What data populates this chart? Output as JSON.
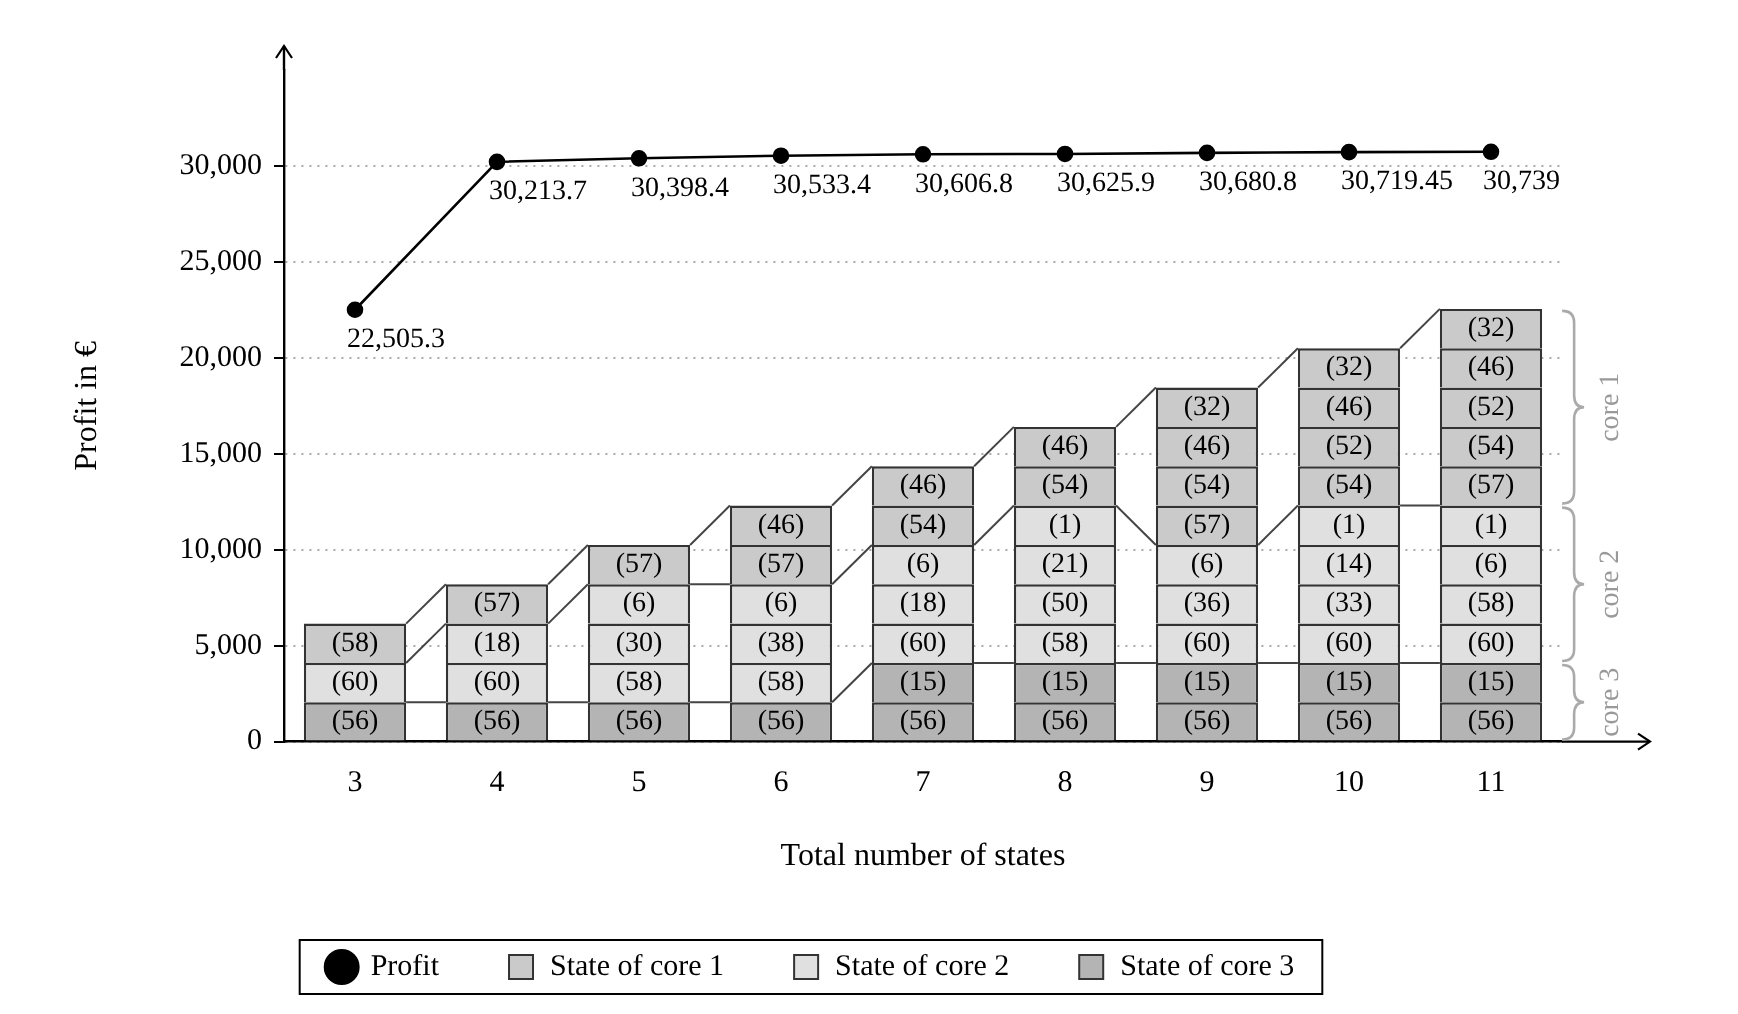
{
  "chart_data": {
    "type": "bar",
    "stacked": true,
    "xlabel": "Total number of states",
    "ylabel": "Profit in €",
    "categories": [
      "3",
      "4",
      "5",
      "6",
      "7",
      "8",
      "9",
      "10",
      "11"
    ],
    "ylim": [
      0,
      35000
    ],
    "yticks": [
      0,
      {
        "value": 5000,
        "label": "5,000"
      },
      {
        "value": 10000,
        "label": "10,000"
      },
      {
        "value": 15000,
        "label": "15,000"
      },
      {
        "value": 20000,
        "label": "20,000"
      },
      {
        "value": 25000,
        "label": "25,000"
      },
      {
        "value": 30000,
        "label": "30,000"
      }
    ],
    "grid": "y",
    "legend": "bottom",
    "marker": "circle",
    "annotations": [
      "core 1",
      "core 2",
      "core 3",
      {
        "text": "(56)",
        "x": "3",
        "y": 2050
      },
      {
        "text": "(60)",
        "x": "3",
        "y": 4100
      },
      {
        "text": "(58)",
        "x": "3",
        "y": 6150
      },
      {
        "text": "(56)",
        "x": "4",
        "y": 2050
      },
      {
        "text": "(60)",
        "x": "4",
        "y": 4100
      },
      {
        "text": "(18)",
        "x": "4",
        "y": 6150
      },
      {
        "text": "(57)",
        "x": "4",
        "y": 8200
      },
      {
        "text": "(56)",
        "x": "5",
        "y": 2050
      },
      {
        "text": "(58)",
        "x": "5",
        "y": 4100
      },
      {
        "text": "(30)",
        "x": "5",
        "y": 6150
      },
      {
        "text": "(6)",
        "x": "5",
        "y": 8200
      },
      {
        "text": "(57)",
        "x": "5",
        "y": 10250
      },
      {
        "text": "(56)",
        "x": "6",
        "y": 2050
      },
      {
        "text": "(58)",
        "x": "6",
        "y": 4100
      },
      {
        "text": "(38)",
        "x": "6",
        "y": 6150
      },
      {
        "text": "(6)",
        "x": "6",
        "y": 8200
      },
      {
        "text": "(57)",
        "x": "6",
        "y": 10250
      },
      {
        "text": "(46)",
        "x": "6",
        "y": 12300
      },
      {
        "text": "(56)",
        "x": "7",
        "y": 2050
      },
      {
        "text": "(15)",
        "x": "7",
        "y": 4100
      },
      {
        "text": "(60)",
        "x": "7",
        "y": 6150
      },
      {
        "text": "(18)",
        "x": "7",
        "y": 8200
      },
      {
        "text": "(6)",
        "x": "7",
        "y": 10250
      },
      {
        "text": "(54)",
        "x": "7",
        "y": 12300
      },
      {
        "text": "(46)",
        "x": "7",
        "y": 14350
      },
      {
        "text": "(56)",
        "x": "8",
        "y": 2050
      },
      {
        "text": "(15)",
        "x": "8",
        "y": 4100
      },
      {
        "text": "(58)",
        "x": "8",
        "y": 6150
      },
      {
        "text": "(50)",
        "x": "8",
        "y": 8200
      },
      {
        "text": "(21)",
        "x": "8",
        "y": 10250
      },
      {
        "text": "(1)",
        "x": "8",
        "y": 12300
      },
      {
        "text": "(54)",
        "x": "8",
        "y": 14350
      },
      {
        "text": "(46)",
        "x": "8",
        "y": 16400
      },
      {
        "text": "(56)",
        "x": "9",
        "y": 2050
      },
      {
        "text": "(15)",
        "x": "9",
        "y": 4100
      },
      {
        "text": "(60)",
        "x": "9",
        "y": 6150
      },
      {
        "text": "(36)",
        "x": "9",
        "y": 8200
      },
      {
        "text": "(6)",
        "x": "9",
        "y": 10250
      },
      {
        "text": "(57)",
        "x": "9",
        "y": 12300
      },
      {
        "text": "(54)",
        "x": "9",
        "y": 14350
      },
      {
        "text": "(46)",
        "x": "9",
        "y": 16400
      },
      {
        "text": "(32)",
        "x": "9",
        "y": 18450
      },
      {
        "text": "(56)",
        "x": "10",
        "y": 2050
      },
      {
        "text": "(15)",
        "x": "10",
        "y": 4100
      },
      {
        "text": "(60)",
        "x": "10",
        "y": 6150
      },
      {
        "text": "(33)",
        "x": "10",
        "y": 8200
      },
      {
        "text": "(14)",
        "x": "10",
        "y": 10250
      },
      {
        "text": "(1)",
        "x": "10",
        "y": 12300
      },
      {
        "text": "(54)",
        "x": "10",
        "y": 14350
      },
      {
        "text": "(52)",
        "x": "10",
        "y": 16400
      },
      {
        "text": "(46)",
        "x": "10",
        "y": 18450
      },
      {
        "text": "(32)",
        "x": "10",
        "y": 20500
      },
      {
        "text": "(56)",
        "x": "11",
        "y": 2050
      },
      {
        "text": "(15)",
        "x": "11",
        "y": 4100
      },
      {
        "text": "(60)",
        "x": "11",
        "y": 6150
      },
      {
        "text": "(58)",
        "x": "11",
        "y": 8200
      },
      {
        "text": "(6)",
        "x": "11",
        "y": 10250
      },
      {
        "text": "(1)",
        "x": "11",
        "y": 12300
      },
      {
        "text": "(57)",
        "x": "11",
        "y": 14350
      },
      {
        "text": "(54)",
        "x": "11",
        "y": 16400
      },
      {
        "text": "(52)",
        "x": "11",
        "y": 18450
      },
      {
        "text": "(46)",
        "x": "11",
        "y": 20500
      },
      {
        "text": "(32)",
        "x": "11",
        "y": 22550
      }
    ],
    "series": [
      {
        "name": "Profit",
        "type": "line",
        "color": "#000000",
        "values": [
          22505.3,
          30213.7,
          30398.4,
          30533.4,
          30606.8,
          30625.9,
          30680.8,
          30719.45,
          30739
        ],
        "value_labels": [
          "22,505.3",
          "30,213.7",
          "30,398.4",
          "30,533.4",
          "30,606.8",
          "30,625.9",
          "30,680.8",
          "30,719.45",
          "30,739"
        ]
      },
      {
        "name": "State of core 3",
        "color": "#b4b4b4",
        "values": [
          2050,
          2050,
          2050,
          2050,
          2050,
          2050,
          2050,
          2050,
          2050
        ]
      },
      {
        "color": "#b4b4b4",
        "values": [
          null,
          null,
          null,
          null,
          2050,
          2050,
          2050,
          2050,
          2050
        ]
      },
      {
        "name": "State of core 2",
        "color": "#e0e0e0",
        "values": [
          2050,
          2050,
          2050,
          2050,
          2050,
          2050,
          2050,
          2050,
          2050
        ]
      },
      {
        "color": "#e0e0e0",
        "values": [
          null,
          2050,
          2050,
          2050,
          2050,
          2050,
          2050,
          2050,
          2050
        ]
      },
      {
        "color": "#e0e0e0",
        "values": [
          null,
          null,
          2050,
          2050,
          2050,
          2050,
          2050,
          2050,
          2050
        ]
      },
      {
        "color": "#e0e0e0",
        "values": [
          null,
          null,
          null,
          null,
          null,
          2050,
          null,
          2050,
          2050
        ]
      },
      {
        "name": "State of core 1",
        "color": "#cacaca",
        "values": [
          2050,
          2050,
          2050,
          2050,
          2050,
          2050,
          2050,
          2050,
          2050
        ]
      },
      {
        "color": "#cacaca",
        "values": [
          null,
          null,
          null,
          2050,
          2050,
          2050,
          2050,
          2050,
          2050
        ]
      },
      {
        "color": "#cacaca",
        "values": [
          null,
          null,
          null,
          null,
          null,
          null,
          2050,
          2050,
          2050
        ]
      },
      {
        "color": "#cacaca",
        "values": [
          null,
          null,
          null,
          null,
          null,
          null,
          2050,
          2050,
          2050
        ]
      },
      {
        "color": "#cacaca",
        "values": [
          null,
          null,
          null,
          null,
          null,
          null,
          null,
          null,
          2050
        ]
      }
    ]
  }
}
